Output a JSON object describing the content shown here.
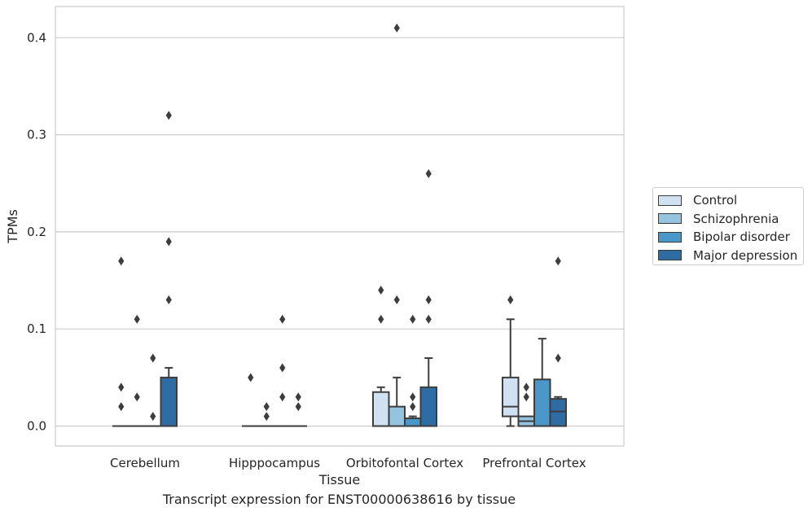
{
  "chart_data": {
    "type": "box",
    "xlabel": "Tissue",
    "ylabel": "TPMs",
    "ylim": [
      -0.02,
      0.43
    ],
    "yticks": [
      0.0,
      0.1,
      0.2,
      0.3,
      0.4
    ],
    "ytick_labels": [
      "0.0",
      "0.1",
      "0.2",
      "0.3",
      "0.4"
    ],
    "grid": "horizontal",
    "legend_position": "right",
    "categories": [
      "Cerebellum",
      "Hipppocampus",
      "Orbitofontal Cortex",
      "Prefrontal Cortex"
    ],
    "series": [
      {
        "name": "Control",
        "color": "#d0e1f2",
        "boxes": [
          {
            "q1": 0,
            "median": 0,
            "q3": 0,
            "whisker_low": 0,
            "whisker_high": 0,
            "outliers": [
              0.17,
              0.04,
              0.02
            ]
          },
          {
            "q1": 0,
            "median": 0,
            "q3": 0,
            "whisker_low": 0,
            "whisker_high": 0,
            "outliers": [
              0.05
            ]
          },
          {
            "q1": 0,
            "median": 0,
            "q3": 0.035,
            "whisker_low": 0,
            "whisker_high": 0.04,
            "outliers": [
              0.14,
              0.11
            ]
          },
          {
            "q1": 0.01,
            "median": 0.02,
            "q3": 0.05,
            "whisker_low": 0,
            "whisker_high": 0.11,
            "outliers": [
              0.13
            ]
          }
        ]
      },
      {
        "name": "Schizophrenia",
        "color": "#94c4df",
        "boxes": [
          {
            "q1": 0,
            "median": 0,
            "q3": 0,
            "whisker_low": 0,
            "whisker_high": 0,
            "outliers": [
              0.11,
              0.03
            ]
          },
          {
            "q1": 0,
            "median": 0,
            "q3": 0,
            "whisker_low": 0,
            "whisker_high": 0,
            "outliers": [
              0.02,
              0.01
            ]
          },
          {
            "q1": 0,
            "median": 0,
            "q3": 0.02,
            "whisker_low": 0,
            "whisker_high": 0.05,
            "outliers": [
              0.41,
              0.13
            ]
          },
          {
            "q1": 0,
            "median": 0.005,
            "q3": 0.01,
            "whisker_low": 0,
            "whisker_high": 0.01,
            "outliers": [
              0.04,
              0.03
            ]
          }
        ]
      },
      {
        "name": "Bipolar disorder",
        "color": "#4a98c9",
        "boxes": [
          {
            "q1": 0,
            "median": 0,
            "q3": 0,
            "whisker_low": 0,
            "whisker_high": 0,
            "outliers": [
              0.07,
              0.01
            ]
          },
          {
            "q1": 0,
            "median": 0,
            "q3": 0,
            "whisker_low": 0,
            "whisker_high": 0,
            "outliers": [
              0.11,
              0.06,
              0.03
            ]
          },
          {
            "q1": 0,
            "median": 0,
            "q3": 0.008,
            "whisker_low": 0,
            "whisker_high": 0.01,
            "outliers": [
              0.11,
              0.03,
              0.02
            ]
          },
          {
            "q1": 0,
            "median": 0,
            "q3": 0.048,
            "whisker_low": 0,
            "whisker_high": 0.09,
            "outliers": []
          }
        ]
      },
      {
        "name": "Major depression",
        "color": "#2e6da4",
        "boxes": [
          {
            "q1": 0,
            "median": 0,
            "q3": 0.05,
            "whisker_low": 0,
            "whisker_high": 0.06,
            "outliers": [
              0.32,
              0.19,
              0.13
            ]
          },
          {
            "q1": 0,
            "median": 0,
            "q3": 0,
            "whisker_low": 0,
            "whisker_high": 0,
            "outliers": [
              0.03,
              0.02
            ]
          },
          {
            "q1": 0,
            "median": 0,
            "q3": 0.04,
            "whisker_low": 0,
            "whisker_high": 0.07,
            "outliers": [
              0.26,
              0.13,
              0.11
            ]
          },
          {
            "q1": 0,
            "median": 0.015,
            "q3": 0.028,
            "whisker_low": 0,
            "whisker_high": 0.03,
            "outliers": [
              0.17,
              0.07
            ]
          }
        ]
      }
    ],
    "caption": "Transcript expression for ENST00000638616 by tissue"
  }
}
